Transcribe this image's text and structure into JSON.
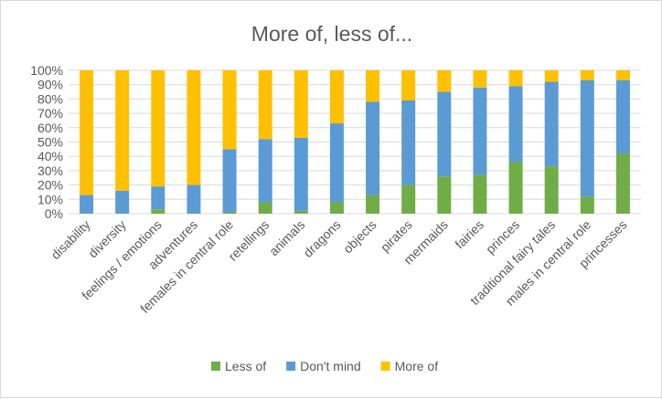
{
  "chart_data": {
    "type": "bar",
    "stacked": true,
    "percent": true,
    "title": "More of, less of...",
    "xlabel": "",
    "ylabel": "",
    "ylim": [
      0,
      100
    ],
    "yticks": [
      "0%",
      "10%",
      "20%",
      "30%",
      "40%",
      "50%",
      "60%",
      "70%",
      "80%",
      "90%",
      "100%"
    ],
    "categories": [
      "disability",
      "diversity",
      "feelings / emotions",
      "adventures",
      "females in central role",
      "retellings",
      "animals",
      "dragons",
      "objects",
      "pirates",
      "mermaids",
      "fairies",
      "princes",
      "traditional fairy tales",
      "males in central role",
      "princesses"
    ],
    "series": [
      {
        "name": "Less of",
        "color": "#70ad47",
        "values": [
          0,
          0,
          3,
          0,
          1,
          8,
          2,
          8,
          13,
          20,
          26,
          27,
          36,
          33,
          12,
          42
        ]
      },
      {
        "name": "Don't mind",
        "color": "#5b9bd5",
        "values": [
          13,
          16,
          16,
          20,
          44,
          44,
          51,
          55,
          65,
          59,
          59,
          61,
          53,
          59,
          81,
          51
        ]
      },
      {
        "name": "More of",
        "color": "#ffc000",
        "values": [
          87,
          84,
          81,
          80,
          55,
          48,
          47,
          37,
          22,
          21,
          15,
          12,
          11,
          8,
          7,
          7
        ]
      }
    ],
    "legend_position": "bottom",
    "grid": true
  }
}
